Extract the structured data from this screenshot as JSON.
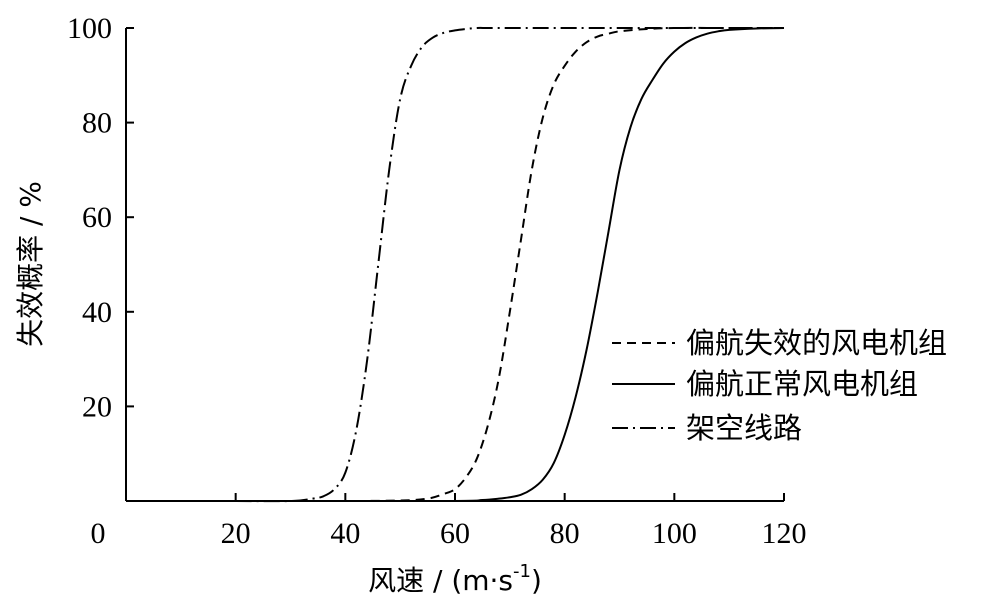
{
  "chart_data": {
    "type": "line",
    "title": "",
    "xlabel": "风速 / (m·s",
    "xlabel_sup": "-1",
    "xlabel_close": ")",
    "ylabel": "失效概率 / %",
    "xlim": [
      0,
      120
    ],
    "ylim": [
      0,
      100
    ],
    "xticks": [
      0,
      20,
      40,
      60,
      80,
      100,
      120
    ],
    "yticks": [
      20,
      40,
      60,
      80,
      100
    ],
    "grid": false,
    "legend_position": "right",
    "series": [
      {
        "name": "偏航失效的风电机组",
        "style": "dashed",
        "x": [
          20,
          40,
          50,
          55,
          58,
          60,
          62,
          64,
          66,
          68,
          70,
          72,
          74,
          76,
          78,
          80,
          82,
          84,
          86,
          88,
          90,
          95,
          100,
          110,
          120
        ],
        "y": [
          0,
          0,
          0.1,
          0.5,
          1.5,
          2.5,
          5,
          9,
          16,
          26,
          40,
          55,
          70,
          81,
          88,
          92,
          95,
          97,
          98.2,
          98.8,
          99.3,
          99.8,
          100,
          100,
          100
        ]
      },
      {
        "name": "偏航正常风电机组",
        "style": "solid",
        "x": [
          30,
          60,
          65,
          68,
          70,
          72,
          74,
          76,
          78,
          80,
          82,
          84,
          86,
          88,
          90,
          92,
          94,
          96,
          98,
          100,
          102,
          104,
          106,
          108,
          110,
          115,
          120
        ],
        "y": [
          0,
          0,
          0.2,
          0.5,
          0.8,
          1.3,
          2.5,
          4.5,
          8,
          14,
          22,
          32,
          44,
          57,
          70,
          79,
          85,
          89,
          92.5,
          95,
          96.8,
          98,
          98.8,
          99.3,
          99.6,
          99.9,
          100
        ]
      },
      {
        "name": "架空线路",
        "style": "dashdot",
        "x": [
          20,
          30,
          34,
          36,
          38,
          40,
          42,
          44,
          46,
          48,
          50,
          52,
          54,
          56,
          58,
          60,
          62,
          64,
          66,
          70,
          80,
          100,
          120
        ],
        "y": [
          0,
          0,
          0.5,
          1,
          2.5,
          6,
          15,
          30,
          50,
          70,
          85,
          92,
          96,
          98,
          99,
          99.5,
          99.8,
          100,
          100,
          100,
          100,
          100,
          100
        ]
      }
    ]
  }
}
